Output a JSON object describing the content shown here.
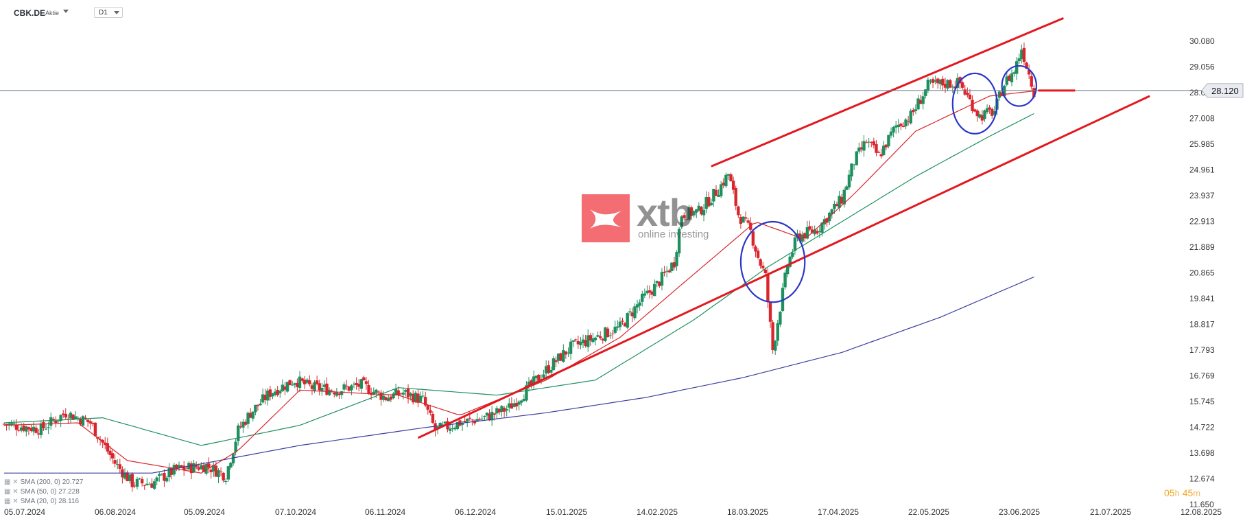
{
  "header": {
    "symbol": "CBK.DE",
    "symbol_type": "Aktie",
    "timeframe": "D1"
  },
  "timer": {
    "hours": "05",
    "h_unit": "h",
    "minutes": "45",
    "m_unit": "m"
  },
  "watermark": {
    "brand": "xtb",
    "tagline": "online investing"
  },
  "indicators": [
    {
      "label": "SMA (200, 0)",
      "value": "20.727",
      "color": "#3b3f9e"
    },
    {
      "label": "SMA (50, 0)",
      "value": "27.228",
      "color": "#1e8f5e"
    },
    {
      "label": "SMA (20, 0)",
      "value": "28.116",
      "color": "#d9262c"
    }
  ],
  "colors": {
    "up": "#1e8f5e",
    "down": "#d9262c",
    "channel": "#e3181f",
    "circle": "#2b35c8",
    "price_line": "#6b7785"
  },
  "chart_data": {
    "type": "candlestick",
    "y_ticks": [
      "30.080",
      "29.056",
      "28.032",
      "27.008",
      "25.985",
      "24.961",
      "23.937",
      "22.913",
      "21.889",
      "20.865",
      "19.841",
      "18.817",
      "17.793",
      "16.769",
      "15.745",
      "14.722",
      "13.698",
      "12.674",
      "11.650"
    ],
    "x_ticks": [
      "05.07.2024",
      "06.08.2024",
      "05.09.2024",
      "07.10.2024",
      "06.11.2024",
      "06.12.2024",
      "15.01.2025",
      "14.02.2025",
      "18.03.2025",
      "17.04.2025",
      "22.05.2025",
      "23.06.2025",
      "21.07.2025",
      "12.08.2025"
    ],
    "current_price": "28.120",
    "ylim": [
      11.65,
      30.9
    ],
    "close_points": [
      [
        0,
        14.85
      ],
      [
        15,
        14.65
      ],
      [
        25,
        15.3
      ],
      [
        35,
        14.9
      ],
      [
        45,
        13.3
      ],
      [
        52,
        12.5
      ],
      [
        60,
        12.5
      ],
      [
        70,
        13.05
      ],
      [
        82,
        13.2
      ],
      [
        90,
        12.8
      ],
      [
        95,
        14.6
      ],
      [
        100,
        15.3
      ],
      [
        108,
        16.1
      ],
      [
        118,
        16.6
      ],
      [
        125,
        16.3
      ],
      [
        135,
        16.2
      ],
      [
        145,
        16.4
      ],
      [
        155,
        15.9
      ],
      [
        162,
        16.1
      ],
      [
        170,
        15.8
      ],
      [
        175,
        14.6
      ],
      [
        185,
        14.9
      ],
      [
        195,
        15.1
      ],
      [
        205,
        15.5
      ],
      [
        210,
        16.0
      ],
      [
        220,
        17.0
      ],
      [
        230,
        17.9
      ],
      [
        240,
        18.3
      ],
      [
        250,
        18.7
      ],
      [
        258,
        19.7
      ],
      [
        265,
        20.4
      ],
      [
        272,
        21.3
      ],
      [
        275,
        23.2
      ],
      [
        282,
        23.3
      ],
      [
        290,
        24.2
      ],
      [
        294,
        24.8
      ],
      [
        298,
        23.2
      ],
      [
        303,
        22.5
      ],
      [
        306,
        21.5
      ],
      [
        309,
        20.7
      ],
      [
        312,
        17.8
      ],
      [
        318,
        21.2
      ],
      [
        322,
        22.3
      ],
      [
        330,
        22.6
      ],
      [
        340,
        23.8
      ],
      [
        345,
        25.3
      ],
      [
        350,
        26.1
      ],
      [
        355,
        25.5
      ],
      [
        362,
        26.7
      ],
      [
        368,
        27.1
      ],
      [
        375,
        28.3
      ],
      [
        382,
        28.4
      ],
      [
        388,
        28.4
      ],
      [
        392,
        27.7
      ],
      [
        396,
        27.1
      ],
      [
        402,
        27.3
      ],
      [
        406,
        28.4
      ],
      [
        410,
        28.9
      ],
      [
        413,
        29.8
      ],
      [
        418,
        28.1
      ]
    ],
    "sma20_points": [
      [
        0,
        14.8
      ],
      [
        30,
        14.9
      ],
      [
        50,
        13.4
      ],
      [
        80,
        12.9
      ],
      [
        95,
        13.8
      ],
      [
        120,
        16.2
      ],
      [
        160,
        16.0
      ],
      [
        185,
        15.2
      ],
      [
        220,
        16.6
      ],
      [
        250,
        18.3
      ],
      [
        275,
        20.4
      ],
      [
        305,
        22.9
      ],
      [
        325,
        22.2
      ],
      [
        345,
        24.0
      ],
      [
        370,
        26.5
      ],
      [
        400,
        27.9
      ],
      [
        418,
        28.1
      ]
    ],
    "sma50_points": [
      [
        0,
        14.9
      ],
      [
        40,
        15.1
      ],
      [
        80,
        14.0
      ],
      [
        120,
        14.8
      ],
      [
        160,
        16.3
      ],
      [
        200,
        16.0
      ],
      [
        240,
        16.6
      ],
      [
        280,
        19.0
      ],
      [
        310,
        21.1
      ],
      [
        340,
        22.9
      ],
      [
        370,
        24.7
      ],
      [
        400,
        26.3
      ],
      [
        418,
        27.2
      ]
    ],
    "sma200_points": [
      [
        0,
        12.9
      ],
      [
        60,
        12.9
      ],
      [
        120,
        14.0
      ],
      [
        170,
        14.7
      ],
      [
        220,
        15.3
      ],
      [
        260,
        15.9
      ],
      [
        300,
        16.7
      ],
      [
        340,
        17.7
      ],
      [
        380,
        19.1
      ],
      [
        418,
        20.7
      ]
    ],
    "channel_upper": [
      [
        287,
        25.1
      ],
      [
        430,
        31.0
      ]
    ],
    "channel_lower": [
      [
        168,
        14.3
      ],
      [
        465,
        27.9
      ]
    ],
    "circles": [
      {
        "center": [
          312,
          21.3
        ],
        "rx": 13,
        "ry": 1.6
      },
      {
        "center": [
          394,
          27.6
        ],
        "rx": 9,
        "ry": 1.2
      },
      {
        "center": [
          412,
          28.3
        ],
        "rx": 7,
        "ry": 0.8
      }
    ]
  }
}
